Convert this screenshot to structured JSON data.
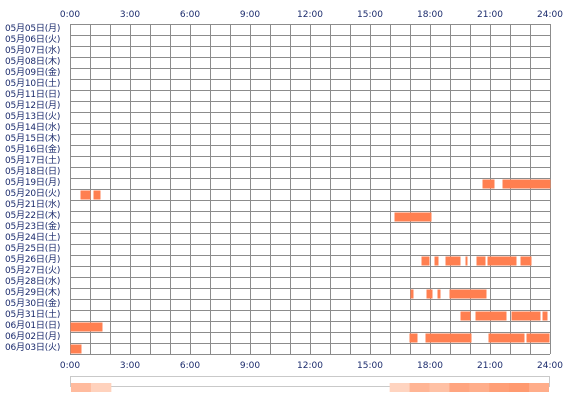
{
  "chart_data": {
    "type": "heatmap",
    "x_tick_labels": [
      "0:00",
      "3:00",
      "6:00",
      "9:00",
      "12:00",
      "15:00",
      "18:00",
      "21:00",
      "24:00"
    ],
    "row_labels": [
      "05月05日(月)",
      "05月06日(火)",
      "05月07日(水)",
      "05月08日(木)",
      "05月09日(金)",
      "05月10日(土)",
      "05月11日(日)",
      "05月12日(月)",
      "05月13日(火)",
      "05月14日(水)",
      "05月15日(木)",
      "05月16日(金)",
      "05月17日(土)",
      "05月18日(日)",
      "05月19日(月)",
      "05月20日(火)",
      "05月21日(水)",
      "05月22日(木)",
      "05月23日(金)",
      "05月24日(土)",
      "05月25日(日)",
      "05月26日(月)",
      "05月27日(火)",
      "05月28日(水)",
      "05月29日(木)",
      "05月30日(金)",
      "05月31日(土)",
      "06月01日(日)",
      "06月02日(月)",
      "06月03日(火)"
    ],
    "x_range_hours": [
      0,
      24
    ],
    "intervals": [
      {
        "row": 14,
        "spans": [
          [
            20.6,
            21.2
          ],
          [
            21.6,
            24.0
          ]
        ]
      },
      {
        "row": 15,
        "spans": [
          [
            0.5,
            1.0
          ],
          [
            1.15,
            1.5
          ]
        ]
      },
      {
        "row": 17,
        "spans": [
          [
            16.2,
            18.05
          ]
        ]
      },
      {
        "row": 21,
        "spans": [
          [
            17.55,
            17.95
          ],
          [
            18.2,
            18.4
          ],
          [
            18.75,
            19.5
          ],
          [
            19.75,
            19.85
          ],
          [
            20.3,
            20.75
          ],
          [
            20.85,
            22.3
          ],
          [
            22.5,
            23.05
          ]
        ]
      },
      {
        "row": 24,
        "spans": [
          [
            17.0,
            17.15
          ],
          [
            17.8,
            18.1
          ],
          [
            18.35,
            18.5
          ],
          [
            18.95,
            20.8
          ]
        ]
      },
      {
        "row": 26,
        "spans": [
          [
            19.5,
            20.0
          ],
          [
            20.25,
            21.8
          ],
          [
            22.05,
            23.5
          ],
          [
            23.6,
            23.85
          ]
        ]
      },
      {
        "row": 27,
        "spans": [
          [
            0.0,
            1.6
          ]
        ]
      },
      {
        "row": 28,
        "spans": [
          [
            16.95,
            17.35
          ],
          [
            17.75,
            20.05
          ],
          [
            20.9,
            22.7
          ],
          [
            22.8,
            23.95
          ]
        ]
      },
      {
        "row": 29,
        "spans": [
          [
            0.0,
            0.55
          ]
        ]
      }
    ],
    "colors": {
      "bar": "#ff7f50",
      "grid": "#8c8c8c",
      "axis_text": "#1a2a6c",
      "summary_low": "#ffe6d8",
      "summary_high": "#ff9a70"
    },
    "grid": true
  }
}
